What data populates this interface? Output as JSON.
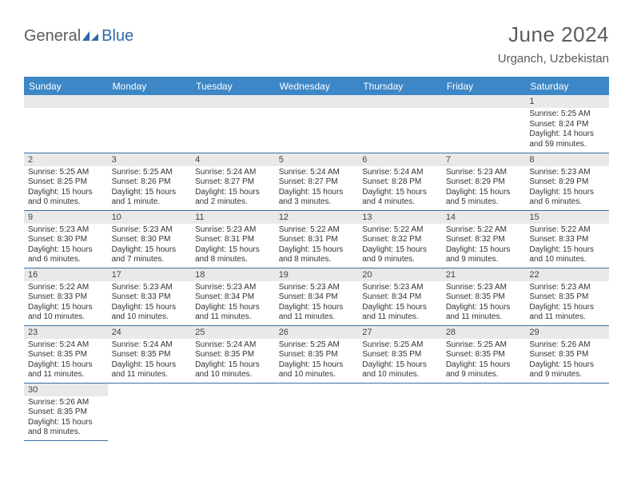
{
  "brand": {
    "text1": "General",
    "text2": "Blue"
  },
  "title": "June 2024",
  "location": "Urganch, Uzbekistan",
  "colors": {
    "header_bg": "#3d87c7",
    "header_fg": "#ffffff",
    "cell_border": "#3d6fa3",
    "daynum_bg": "#e9e9e9",
    "brand_gray": "#5c5c5c",
    "brand_blue": "#2d6aa8"
  },
  "columns": [
    "Sunday",
    "Monday",
    "Tuesday",
    "Wednesday",
    "Thursday",
    "Friday",
    "Saturday"
  ],
  "layout": {
    "first_weekday": 6,
    "days_in_month": 30,
    "cols": 7
  },
  "days": [
    {
      "n": 1,
      "sunrise": "5:25 AM",
      "sunset": "8:24 PM",
      "daylight": "14 hours and 59 minutes."
    },
    {
      "n": 2,
      "sunrise": "5:25 AM",
      "sunset": "8:25 PM",
      "daylight": "15 hours and 0 minutes."
    },
    {
      "n": 3,
      "sunrise": "5:25 AM",
      "sunset": "8:26 PM",
      "daylight": "15 hours and 1 minute."
    },
    {
      "n": 4,
      "sunrise": "5:24 AM",
      "sunset": "8:27 PM",
      "daylight": "15 hours and 2 minutes."
    },
    {
      "n": 5,
      "sunrise": "5:24 AM",
      "sunset": "8:27 PM",
      "daylight": "15 hours and 3 minutes."
    },
    {
      "n": 6,
      "sunrise": "5:24 AM",
      "sunset": "8:28 PM",
      "daylight": "15 hours and 4 minutes."
    },
    {
      "n": 7,
      "sunrise": "5:23 AM",
      "sunset": "8:29 PM",
      "daylight": "15 hours and 5 minutes."
    },
    {
      "n": 8,
      "sunrise": "5:23 AM",
      "sunset": "8:29 PM",
      "daylight": "15 hours and 6 minutes."
    },
    {
      "n": 9,
      "sunrise": "5:23 AM",
      "sunset": "8:30 PM",
      "daylight": "15 hours and 6 minutes."
    },
    {
      "n": 10,
      "sunrise": "5:23 AM",
      "sunset": "8:30 PM",
      "daylight": "15 hours and 7 minutes."
    },
    {
      "n": 11,
      "sunrise": "5:23 AM",
      "sunset": "8:31 PM",
      "daylight": "15 hours and 8 minutes."
    },
    {
      "n": 12,
      "sunrise": "5:22 AM",
      "sunset": "8:31 PM",
      "daylight": "15 hours and 8 minutes."
    },
    {
      "n": 13,
      "sunrise": "5:22 AM",
      "sunset": "8:32 PM",
      "daylight": "15 hours and 9 minutes."
    },
    {
      "n": 14,
      "sunrise": "5:22 AM",
      "sunset": "8:32 PM",
      "daylight": "15 hours and 9 minutes."
    },
    {
      "n": 15,
      "sunrise": "5:22 AM",
      "sunset": "8:33 PM",
      "daylight": "15 hours and 10 minutes."
    },
    {
      "n": 16,
      "sunrise": "5:22 AM",
      "sunset": "8:33 PM",
      "daylight": "15 hours and 10 minutes."
    },
    {
      "n": 17,
      "sunrise": "5:23 AM",
      "sunset": "8:33 PM",
      "daylight": "15 hours and 10 minutes."
    },
    {
      "n": 18,
      "sunrise": "5:23 AM",
      "sunset": "8:34 PM",
      "daylight": "15 hours and 11 minutes."
    },
    {
      "n": 19,
      "sunrise": "5:23 AM",
      "sunset": "8:34 PM",
      "daylight": "15 hours and 11 minutes."
    },
    {
      "n": 20,
      "sunrise": "5:23 AM",
      "sunset": "8:34 PM",
      "daylight": "15 hours and 11 minutes."
    },
    {
      "n": 21,
      "sunrise": "5:23 AM",
      "sunset": "8:35 PM",
      "daylight": "15 hours and 11 minutes."
    },
    {
      "n": 22,
      "sunrise": "5:23 AM",
      "sunset": "8:35 PM",
      "daylight": "15 hours and 11 minutes."
    },
    {
      "n": 23,
      "sunrise": "5:24 AM",
      "sunset": "8:35 PM",
      "daylight": "15 hours and 11 minutes."
    },
    {
      "n": 24,
      "sunrise": "5:24 AM",
      "sunset": "8:35 PM",
      "daylight": "15 hours and 11 minutes."
    },
    {
      "n": 25,
      "sunrise": "5:24 AM",
      "sunset": "8:35 PM",
      "daylight": "15 hours and 10 minutes."
    },
    {
      "n": 26,
      "sunrise": "5:25 AM",
      "sunset": "8:35 PM",
      "daylight": "15 hours and 10 minutes."
    },
    {
      "n": 27,
      "sunrise": "5:25 AM",
      "sunset": "8:35 PM",
      "daylight": "15 hours and 10 minutes."
    },
    {
      "n": 28,
      "sunrise": "5:25 AM",
      "sunset": "8:35 PM",
      "daylight": "15 hours and 9 minutes."
    },
    {
      "n": 29,
      "sunrise": "5:26 AM",
      "sunset": "8:35 PM",
      "daylight": "15 hours and 9 minutes."
    },
    {
      "n": 30,
      "sunrise": "5:26 AM",
      "sunset": "8:35 PM",
      "daylight": "15 hours and 8 minutes."
    }
  ],
  "labels": {
    "sunrise": "Sunrise:",
    "sunset": "Sunset:",
    "daylight": "Daylight:"
  }
}
